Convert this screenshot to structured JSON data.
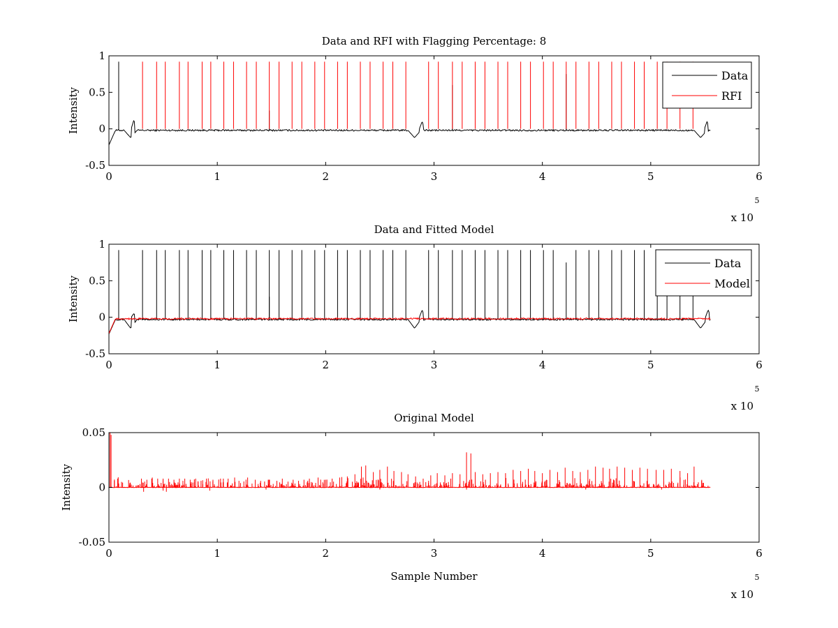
{
  "figure": {
    "background": "#ffffff",
    "data_color": "#000000",
    "rfi_color": "#ff0000",
    "model_color": "#ff0000"
  },
  "chart_data": [
    {
      "type": "line",
      "title": "Data and RFI with Flagging Percentage: 8",
      "xlabel": "",
      "ylabel": "Intensity",
      "xlim": [
        0,
        6
      ],
      "ylim": [
        -0.5,
        1
      ],
      "x_scale_note": "x 10",
      "x_scale_exponent": "5",
      "xticks": [
        "0",
        "1",
        "2",
        "3",
        "4",
        "5",
        "6"
      ],
      "yticks": [
        "-0.5",
        "0",
        "0.5",
        "1"
      ],
      "legend": {
        "position": "top-right",
        "entries": [
          "Data",
          "RFI"
        ]
      },
      "series": [
        {
          "name": "Data",
          "color": "#000000",
          "baseline": -0.02,
          "x_end": 5.55,
          "spikes": [
            [
              0.09,
              0.92
            ],
            [
              1.48,
              0.25
            ],
            [
              3.17,
              0.6
            ],
            [
              4.22,
              0.75
            ]
          ],
          "dips": [
            [
              0.2,
              -0.12
            ],
            [
              2.82,
              -0.12
            ],
            [
              5.46,
              -0.12
            ]
          ],
          "bumps": [
            [
              0.23,
              0.12
            ],
            [
              2.89,
              0.1
            ],
            [
              5.52,
              0.1
            ]
          ]
        },
        {
          "name": "RFI",
          "color": "#ff0000",
          "spikes": [
            [
              0.31,
              0.92
            ],
            [
              0.44,
              0.92
            ],
            [
              0.52,
              0.92
            ],
            [
              0.65,
              0.92
            ],
            [
              0.73,
              0.92
            ],
            [
              0.86,
              0.92
            ],
            [
              0.94,
              0.92
            ],
            [
              1.06,
              0.92
            ],
            [
              1.15,
              0.92
            ],
            [
              1.27,
              0.92
            ],
            [
              1.36,
              0.92
            ],
            [
              1.48,
              0.92
            ],
            [
              1.57,
              0.92
            ],
            [
              1.69,
              0.92
            ],
            [
              1.78,
              0.92
            ],
            [
              1.9,
              0.92
            ],
            [
              1.99,
              0.92
            ],
            [
              2.11,
              0.92
            ],
            [
              2.2,
              0.92
            ],
            [
              2.32,
              0.92
            ],
            [
              2.41,
              0.92
            ],
            [
              2.53,
              0.92
            ],
            [
              2.62,
              0.92
            ],
            [
              2.74,
              0.92
            ],
            [
              2.95,
              0.92
            ],
            [
              3.04,
              0.92
            ],
            [
              3.17,
              0.92
            ],
            [
              3.26,
              0.92
            ],
            [
              3.38,
              0.92
            ],
            [
              3.47,
              0.92
            ],
            [
              3.59,
              0.92
            ],
            [
              3.68,
              0.92
            ],
            [
              3.8,
              0.92
            ],
            [
              3.89,
              0.92
            ],
            [
              4.01,
              0.92
            ],
            [
              4.1,
              0.92
            ],
            [
              4.22,
              0.92
            ],
            [
              4.31,
              0.92
            ],
            [
              4.43,
              0.92
            ],
            [
              4.52,
              0.92
            ],
            [
              4.64,
              0.92
            ],
            [
              4.73,
              0.92
            ],
            [
              4.85,
              0.92
            ],
            [
              4.94,
              0.92
            ],
            [
              5.06,
              0.92
            ],
            [
              5.15,
              0.92
            ],
            [
              5.27,
              0.92
            ],
            [
              5.39,
              0.92
            ]
          ]
        }
      ]
    },
    {
      "type": "line",
      "title": "Data and Fitted Model",
      "xlabel": "",
      "ylabel": "Intensity",
      "xlim": [
        0,
        6
      ],
      "ylim": [
        -0.5,
        1
      ],
      "x_scale_note": "x 10",
      "x_scale_exponent": "5",
      "xticks": [
        "0",
        "1",
        "2",
        "3",
        "4",
        "5",
        "6"
      ],
      "yticks": [
        "-0.5",
        "0",
        "0.5",
        "1"
      ],
      "legend": {
        "position": "top-right",
        "entries": [
          "Data",
          "Model"
        ]
      },
      "series": [
        {
          "name": "Data",
          "color": "#000000",
          "baseline": -0.03,
          "x_end": 5.55,
          "spikes": [
            [
              0.09,
              0.92
            ],
            [
              0.31,
              0.92
            ],
            [
              0.44,
              0.92
            ],
            [
              0.52,
              0.92
            ],
            [
              0.65,
              0.92
            ],
            [
              0.73,
              0.92
            ],
            [
              0.86,
              0.92
            ],
            [
              0.94,
              0.92
            ],
            [
              1.06,
              0.92
            ],
            [
              1.15,
              0.92
            ],
            [
              1.27,
              0.92
            ],
            [
              1.36,
              0.92
            ],
            [
              1.48,
              0.92
            ],
            [
              1.48,
              0.28
            ],
            [
              1.57,
              0.92
            ],
            [
              1.69,
              0.92
            ],
            [
              1.78,
              0.92
            ],
            [
              1.9,
              0.92
            ],
            [
              1.99,
              0.92
            ],
            [
              2.11,
              0.92
            ],
            [
              2.2,
              0.92
            ],
            [
              2.32,
              0.92
            ],
            [
              2.41,
              0.92
            ],
            [
              2.53,
              0.92
            ],
            [
              2.62,
              0.92
            ],
            [
              2.74,
              0.92
            ],
            [
              2.95,
              0.92
            ],
            [
              3.04,
              0.92
            ],
            [
              3.17,
              0.92
            ],
            [
              3.26,
              0.92
            ],
            [
              3.38,
              0.92
            ],
            [
              3.47,
              0.92
            ],
            [
              3.59,
              0.92
            ],
            [
              3.68,
              0.92
            ],
            [
              3.8,
              0.92
            ],
            [
              3.89,
              0.92
            ],
            [
              4.01,
              0.92
            ],
            [
              4.1,
              0.92
            ],
            [
              4.22,
              0.75
            ],
            [
              4.31,
              0.92
            ],
            [
              4.43,
              0.92
            ],
            [
              4.52,
              0.92
            ],
            [
              4.64,
              0.92
            ],
            [
              4.73,
              0.92
            ],
            [
              4.85,
              0.92
            ],
            [
              4.94,
              0.92
            ],
            [
              5.06,
              0.92
            ],
            [
              5.15,
              0.92
            ],
            [
              5.27,
              0.92
            ],
            [
              5.39,
              0.92
            ]
          ],
          "dips": [
            [
              0.2,
              -0.15
            ],
            [
              2.82,
              -0.15
            ],
            [
              5.46,
              -0.15
            ]
          ],
          "bumps": [
            [
              0.23,
              0.05
            ],
            [
              2.89,
              0.1
            ],
            [
              5.53,
              0.1
            ]
          ]
        },
        {
          "name": "Model",
          "color": "#ff0000",
          "baseline": -0.02,
          "x_end": 5.55,
          "start_value": 0.04
        }
      ]
    },
    {
      "type": "line",
      "title": "Original Model",
      "xlabel": "Sample Number",
      "ylabel": "Intensity",
      "xlim": [
        0,
        6
      ],
      "ylim": [
        -0.05,
        0.05
      ],
      "x_scale_note": "x 10",
      "x_scale_exponent": "5",
      "xticks": [
        "0",
        "1",
        "2",
        "3",
        "4",
        "5",
        "6"
      ],
      "yticks": [
        "-0.05",
        "0",
        "0.05"
      ],
      "legend": null,
      "series": [
        {
          "color": "#ff0000",
          "baseline": 0.0,
          "x_end": 5.55,
          "spikes": [
            [
              0.01,
              0.05
            ],
            [
              0.02,
              0.048
            ],
            [
              0.05,
              0.006
            ],
            [
              0.08,
              0.008
            ],
            [
              0.3,
              0.008
            ],
            [
              0.35,
              0.007
            ],
            [
              0.4,
              0.009
            ],
            [
              0.45,
              0.008
            ],
            [
              0.5,
              0.008
            ],
            [
              0.55,
              0.008
            ],
            [
              0.6,
              0.007
            ],
            [
              0.65,
              0.008
            ],
            [
              0.7,
              0.008
            ],
            [
              0.75,
              0.007
            ],
            [
              0.8,
              0.008
            ],
            [
              0.85,
              0.006
            ],
            [
              0.9,
              0.008
            ],
            [
              0.96,
              0.007
            ],
            [
              1.03,
              0.008
            ],
            [
              1.1,
              0.008
            ],
            [
              1.16,
              0.009
            ],
            [
              1.2,
              0.006
            ],
            [
              1.28,
              0.009
            ],
            [
              1.35,
              0.007
            ],
            [
              1.4,
              0.006
            ],
            [
              1.47,
              0.007
            ],
            [
              1.55,
              0.006
            ],
            [
              1.6,
              0.008
            ],
            [
              1.7,
              0.007
            ],
            [
              1.75,
              0.006
            ],
            [
              1.8,
              0.007
            ],
            [
              1.85,
              0.008
            ],
            [
              1.93,
              0.009
            ],
            [
              2.0,
              0.007
            ],
            [
              2.06,
              0.008
            ],
            [
              2.13,
              0.009
            ],
            [
              2.2,
              0.01
            ],
            [
              2.27,
              0.012
            ],
            [
              2.33,
              0.019
            ],
            [
              2.37,
              0.02
            ],
            [
              2.44,
              0.014
            ],
            [
              2.5,
              0.016
            ],
            [
              2.57,
              0.019
            ],
            [
              2.63,
              0.015
            ],
            [
              2.7,
              0.014
            ],
            [
              2.76,
              0.012
            ],
            [
              2.83,
              0.01
            ],
            [
              2.9,
              0.008
            ],
            [
              2.97,
              0.011
            ],
            [
              3.03,
              0.013
            ],
            [
              3.1,
              0.011
            ],
            [
              3.17,
              0.013
            ],
            [
              3.24,
              0.012
            ],
            [
              3.3,
              0.032
            ],
            [
              3.34,
              0.031
            ],
            [
              3.38,
              0.014
            ],
            [
              3.45,
              0.012
            ],
            [
              3.52,
              0.013
            ],
            [
              3.59,
              0.014
            ],
            [
              3.66,
              0.013
            ],
            [
              3.73,
              0.016
            ],
            [
              3.8,
              0.015
            ],
            [
              3.87,
              0.017
            ],
            [
              3.93,
              0.015
            ],
            [
              4.0,
              0.013
            ],
            [
              4.07,
              0.016
            ],
            [
              4.14,
              0.014
            ],
            [
              4.21,
              0.018
            ],
            [
              4.28,
              0.015
            ],
            [
              4.35,
              0.014
            ],
            [
              4.42,
              0.016
            ],
            [
              4.49,
              0.019
            ],
            [
              4.56,
              0.018
            ],
            [
              4.62,
              0.017
            ],
            [
              4.69,
              0.019
            ],
            [
              4.76,
              0.018
            ],
            [
              4.83,
              0.016
            ],
            [
              4.9,
              0.018
            ],
            [
              4.97,
              0.017
            ],
            [
              5.05,
              0.016
            ],
            [
              5.12,
              0.016
            ],
            [
              5.19,
              0.017
            ],
            [
              5.27,
              0.015
            ],
            [
              5.34,
              0.013
            ],
            [
              5.4,
              0.019
            ],
            [
              5.48,
              0.004
            ]
          ],
          "negative_spikes": [
            [
              0.32,
              -0.004
            ],
            [
              0.5,
              -0.003
            ],
            [
              0.53,
              -0.004
            ],
            [
              0.93,
              -0.003
            ],
            [
              1.45,
              -0.002
            ],
            [
              2.5,
              -0.002
            ],
            [
              3.3,
              -0.002
            ],
            [
              4.4,
              -0.002
            ],
            [
              5.1,
              -0.002
            ]
          ]
        }
      ]
    }
  ]
}
